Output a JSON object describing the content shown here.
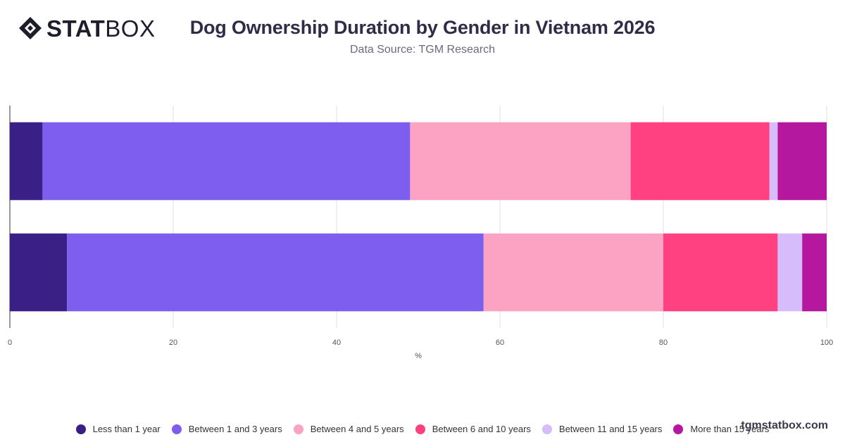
{
  "header": {
    "logo": {
      "bold": "STAT",
      "light": "BOX",
      "icon": "diamond-logo-icon"
    },
    "title": "Dog Ownership Duration by Gender in Vietnam 2026",
    "subtitle": "Data Source: TGM Research"
  },
  "watermark": "tgmstatbox.com",
  "chart_data": {
    "type": "bar",
    "orientation": "horizontal",
    "stacked": true,
    "title": "Dog Ownership Duration by Gender in Vietnam 2026",
    "xlabel": "%",
    "ylabel": "",
    "xlim": [
      0,
      100
    ],
    "xticks": [
      0,
      20,
      40,
      60,
      80,
      100
    ],
    "grid": true,
    "legend_position": "bottom",
    "categories": [
      "",
      ""
    ],
    "series": [
      {
        "name": "Less than 1 year",
        "color": "#3a1f86",
        "values": [
          4,
          7
        ]
      },
      {
        "name": "Between 1 and 3 years",
        "color": "#7e5eef",
        "values": [
          45,
          51
        ]
      },
      {
        "name": "Between 4 and 5 years",
        "color": "#fca3c4",
        "values": [
          27,
          22
        ]
      },
      {
        "name": "Between 6 and 10 years",
        "color": "#ff4081",
        "values": [
          17,
          14
        ]
      },
      {
        "name": "Between 11 and 15 years",
        "color": "#d6bcfa",
        "values": [
          1,
          3
        ]
      },
      {
        "name": "More than 15 years",
        "color": "#b5179e",
        "values": [
          6,
          3
        ]
      }
    ]
  }
}
